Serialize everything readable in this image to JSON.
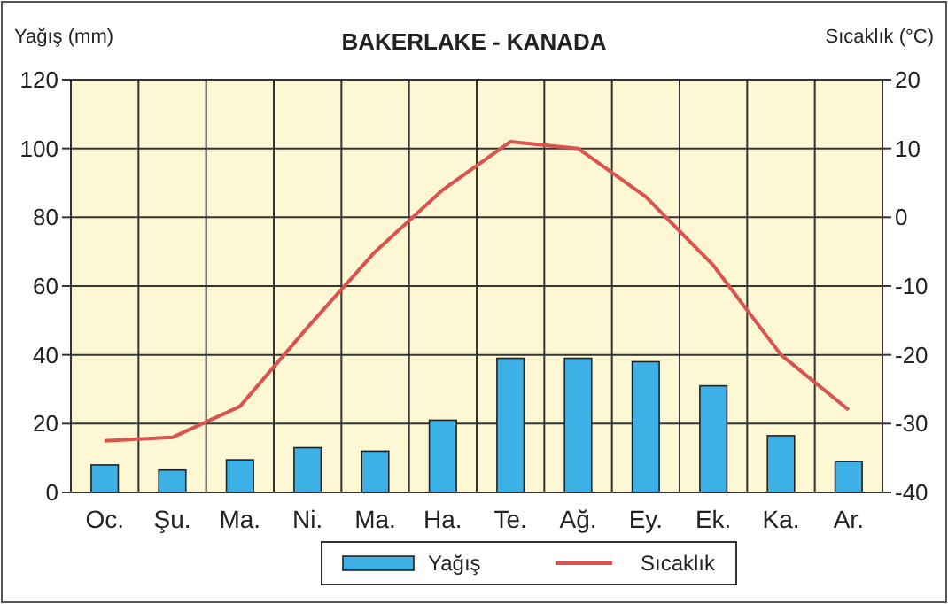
{
  "chart_data": {
    "type": "bar",
    "title": "BAKERLAKE - KANADA",
    "ylabel": "Yağış (mm)",
    "y2label": "Sıcaklık (°C)",
    "categories": [
      "Oc.",
      "Şu.",
      "Ma.",
      "Ni.",
      "Ma.",
      "Ha.",
      "Te.",
      "Ağ.",
      "Ey.",
      "Ek.",
      "Ka.",
      "Ar."
    ],
    "series": [
      {
        "name": "Yağış",
        "color": "#3db0e6",
        "values": [
          8,
          6.5,
          9.5,
          13,
          12,
          21,
          39,
          39,
          38,
          31,
          16.5,
          9
        ]
      },
      {
        "name": "Sıcaklık",
        "type": "line",
        "axis": "y2",
        "color": "#d9534f",
        "values": [
          -32.5,
          -32,
          -27.5,
          -16,
          -5,
          4,
          11,
          10,
          3,
          -7,
          -20,
          -28
        ]
      }
    ],
    "ylim": [
      0,
      120
    ],
    "yticks": [
      0,
      20,
      40,
      60,
      80,
      100,
      120
    ],
    "y2lim": [
      -40,
      20
    ],
    "y2ticks": [
      -40,
      -30,
      -20,
      -10,
      0,
      10,
      20
    ],
    "grid": true,
    "legend": "bottom"
  }
}
